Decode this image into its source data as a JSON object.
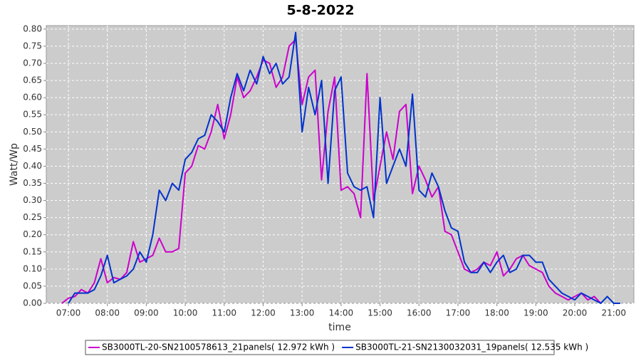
{
  "chart_data": {
    "type": "line",
    "title": "5-8-2022",
    "xlabel": "time",
    "ylabel": "Watt/Wp",
    "x": [
      "06:50",
      "07:00",
      "07:10",
      "07:20",
      "07:30",
      "07:40",
      "07:50",
      "08:00",
      "08:10",
      "08:20",
      "08:30",
      "08:40",
      "08:50",
      "09:00",
      "09:10",
      "09:20",
      "09:30",
      "09:40",
      "09:50",
      "10:00",
      "10:10",
      "10:20",
      "10:30",
      "10:40",
      "10:50",
      "11:00",
      "11:10",
      "11:20",
      "11:30",
      "11:40",
      "11:50",
      "12:00",
      "12:10",
      "12:20",
      "12:30",
      "12:40",
      "12:50",
      "13:00",
      "13:10",
      "13:20",
      "13:30",
      "13:40",
      "13:50",
      "14:00",
      "14:10",
      "14:20",
      "14:30",
      "14:40",
      "14:50",
      "15:00",
      "15:10",
      "15:20",
      "15:30",
      "15:40",
      "15:50",
      "16:00",
      "16:10",
      "16:20",
      "16:30",
      "16:40",
      "16:50",
      "17:00",
      "17:10",
      "17:20",
      "17:30",
      "17:40",
      "17:50",
      "18:00",
      "18:10",
      "18:20",
      "18:30",
      "18:40",
      "18:50",
      "19:00",
      "19:10",
      "19:20",
      "19:30",
      "19:40",
      "19:50",
      "20:00",
      "20:10",
      "20:20",
      "20:30",
      "20:40",
      "20:50",
      "21:00",
      "21:10"
    ],
    "series": [
      {
        "name": "SB3000TL-20-SN2100578613_21panels( 12.972 kWh )",
        "color": "#cc00cc",
        "values": [
          0.0,
          0.015,
          0.02,
          0.04,
          0.03,
          0.06,
          0.13,
          0.06,
          0.075,
          0.07,
          0.09,
          0.18,
          0.12,
          0.13,
          0.14,
          0.19,
          0.15,
          0.15,
          0.16,
          0.38,
          0.4,
          0.46,
          0.45,
          0.5,
          0.58,
          0.48,
          0.55,
          0.66,
          0.6,
          0.62,
          0.66,
          0.71,
          0.7,
          0.63,
          0.66,
          0.75,
          0.77,
          0.58,
          0.66,
          0.68,
          0.36,
          0.56,
          0.66,
          0.33,
          0.34,
          0.32,
          0.25,
          0.67,
          0.3,
          0.4,
          0.5,
          0.42,
          0.56,
          0.58,
          0.32,
          0.4,
          0.36,
          0.31,
          0.34,
          0.21,
          0.2,
          0.15,
          0.1,
          0.09,
          0.1,
          0.12,
          0.11,
          0.15,
          0.08,
          0.1,
          0.13,
          0.14,
          0.11,
          0.1,
          0.09,
          0.05,
          0.03,
          0.02,
          0.01,
          0.02,
          0.03,
          0.01,
          0.02,
          0.0,
          null,
          null,
          null
        ]
      },
      {
        "name": "SB3000TL-21-SN2130032031_19panels( 12.535 kWh )",
        "color": "#0033cc",
        "values": [
          null,
          0.0,
          0.03,
          0.03,
          0.03,
          0.04,
          0.08,
          0.14,
          0.06,
          0.07,
          0.08,
          0.1,
          0.15,
          0.12,
          0.2,
          0.33,
          0.3,
          0.35,
          0.33,
          0.42,
          0.44,
          0.48,
          0.49,
          0.55,
          0.53,
          0.5,
          0.6,
          0.67,
          0.62,
          0.68,
          0.64,
          0.72,
          0.67,
          0.7,
          0.64,
          0.66,
          0.79,
          0.5,
          0.63,
          0.55,
          0.65,
          0.35,
          0.62,
          0.66,
          0.38,
          0.34,
          0.33,
          0.34,
          0.25,
          0.6,
          0.35,
          0.4,
          0.45,
          0.4,
          0.61,
          0.33,
          0.31,
          0.38,
          0.34,
          0.27,
          0.22,
          0.21,
          0.12,
          0.09,
          0.09,
          0.12,
          0.09,
          0.12,
          0.14,
          0.09,
          0.1,
          0.14,
          0.14,
          0.12,
          0.12,
          0.07,
          0.05,
          0.03,
          0.02,
          0.01,
          0.03,
          0.02,
          0.01,
          0.0,
          0.02,
          0.0,
          0.0
        ]
      }
    ],
    "xlim": [
      "06:26",
      "21:31"
    ],
    "xticks": [
      "07:00",
      "08:00",
      "09:00",
      "10:00",
      "11:00",
      "12:00",
      "13:00",
      "14:00",
      "15:00",
      "16:00",
      "17:00",
      "18:00",
      "19:00",
      "20:00",
      "21:00"
    ],
    "ylim": [
      0,
      0.81
    ],
    "yticks": [
      {
        "value": 0,
        "label": "0.00"
      },
      0.05,
      {
        "value": 0.1,
        "label": "0.10"
      },
      0.15,
      {
        "value": 0.2,
        "label": "0.20"
      },
      0.25,
      {
        "value": 0.3,
        "label": "0.30"
      },
      0.35,
      {
        "value": 0.4,
        "label": "0.40"
      },
      0.45,
      {
        "value": 0.5,
        "label": "0.50"
      },
      0.55,
      {
        "value": 0.6,
        "label": "0.60"
      },
      0.65,
      {
        "value": 0.7,
        "label": "0.70"
      },
      0.75,
      {
        "value": 0.8,
        "label": "0.80"
      }
    ],
    "grid": true
  }
}
